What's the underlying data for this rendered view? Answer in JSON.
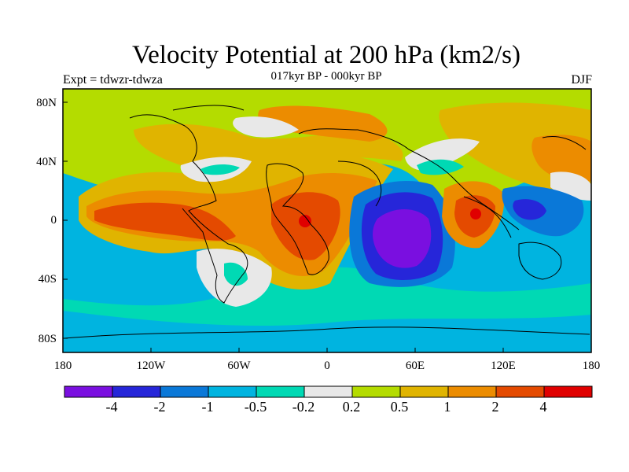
{
  "title": "Velocity Potential at 200 hPa (km2/s)",
  "subtitle": "017kyr BP - 000kyr BP",
  "left_label": "Expt = tdwzr-tdwza",
  "right_label": "DJF",
  "lat_ticks": [
    "80N",
    "40N",
    "0",
    "40S",
    "80S"
  ],
  "lon_ticks": [
    "180",
    "120W",
    "60W",
    "0",
    "60E",
    "120E",
    "180"
  ],
  "colorbar": {
    "colors": [
      "#7a0fe0",
      "#2626d9",
      "#0a78d8",
      "#00b4e0",
      "#00d9b4",
      "#e8e8e8",
      "#b4dc00",
      "#e0b400",
      "#ec8c00",
      "#e44a00",
      "#e00000"
    ],
    "labels": [
      "-4",
      "-2",
      "-1",
      "-0.5",
      "-0.2",
      "0.2",
      "0.5",
      "1",
      "2",
      "4"
    ]
  }
}
